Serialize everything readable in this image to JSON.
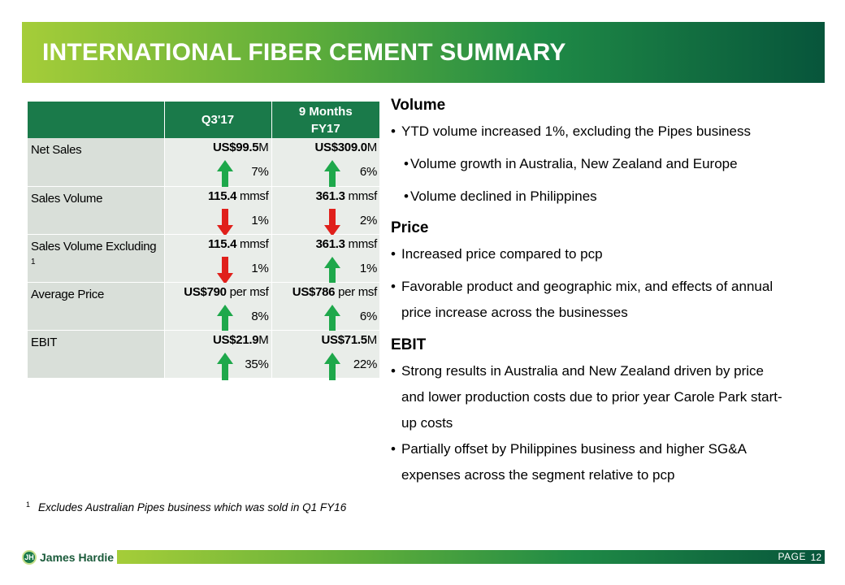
{
  "header": {
    "title": "INTERNATIONAL FIBER CEMENT SUMMARY"
  },
  "table": {
    "col_q3": "Q3'17",
    "col_9m_line1": "9 Months",
    "col_9m_line2": "FY17",
    "rows": [
      {
        "label": "Net Sales",
        "label_sup": "",
        "q3": {
          "bold": "US$99.5",
          "rest": "M",
          "pct": "7%",
          "direction": "up"
        },
        "m9": {
          "bold": "US$309.0",
          "rest": "M",
          "pct": "6%",
          "direction": "up"
        }
      },
      {
        "label": "Sales Volume",
        "label_sup": "",
        "q3": {
          "bold": "115.4",
          "rest": " mmsf",
          "pct": "1%",
          "direction": "down"
        },
        "m9": {
          "bold": "361.3",
          "rest": " mmsf",
          "pct": "2%",
          "direction": "down"
        }
      },
      {
        "label": "Sales Volume Excluding",
        "label_sup": "1",
        "q3": {
          "bold": "115.4",
          "rest": " mmsf",
          "pct": "1%",
          "direction": "down"
        },
        "m9": {
          "bold": "361.3",
          "rest": " mmsf",
          "pct": "1%",
          "direction": "up"
        }
      },
      {
        "label": "Average Price",
        "label_sup": "",
        "q3": {
          "bold": "US$790",
          "rest": " per msf",
          "pct": "8%",
          "direction": "up"
        },
        "m9": {
          "bold": "US$786",
          "rest": " per msf",
          "pct": "6%",
          "direction": "up"
        }
      },
      {
        "label": "EBIT",
        "label_sup": "",
        "q3": {
          "bold": "US$21.9",
          "rest": "M",
          "pct": "35%",
          "direction": "up"
        },
        "m9": {
          "bold": "US$71.5",
          "rest": "M",
          "pct": "22%",
          "direction": "up"
        }
      }
    ]
  },
  "volume": {
    "heading": "Volume",
    "bullet1": "YTD volume increased 1%, excluding the Pipes business",
    "sub1": "Volume growth in Australia, New Zealand and Europe",
    "sub2": "Volume declined in Philippines"
  },
  "price": {
    "heading": "Price",
    "bullet1": "Increased price compared to pcp",
    "bullet2a": "Favorable product and geographic mix, and effects of annual",
    "bullet2b": "price increase across the businesses"
  },
  "ebit": {
    "heading": "EBIT",
    "bullet1a": "Strong results in Australia and New Zealand driven by price",
    "bullet1b": "and lower production costs due to prior year Carole Park start-",
    "bullet1c": "up costs",
    "bullet2a": "Partially offset by Philippines business and higher SG&A",
    "bullet2b": "expenses across the segment relative to pcp"
  },
  "footnote": {
    "num": "1",
    "text": "Excludes Australian Pipes business which was sold in Q1 FY16"
  },
  "footer": {
    "logo_text": "James Hardie",
    "logo_mark": "JH",
    "page_label": "PAGE",
    "page_number": "12"
  },
  "colors": {
    "arrow_up": "#1ea84b",
    "arrow_down": "#e0201b",
    "header_dark": "#07553b",
    "header_light": "#a5cd39"
  }
}
